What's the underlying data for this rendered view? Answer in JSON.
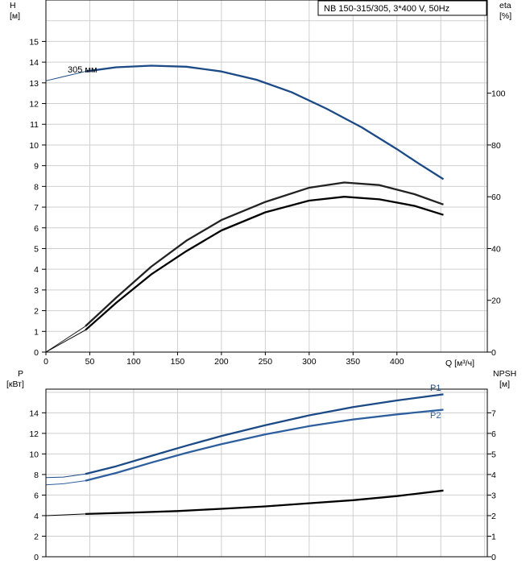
{
  "chart_data": [
    {
      "type": "line",
      "title": "NB 150-315/305, 3*400 V, 50Hz",
      "xlabel": "Q [м³/ч]",
      "ylabel_left": [
        "H",
        "[м]"
      ],
      "ylabel_right": [
        "eta",
        "[%]"
      ],
      "xlim": [
        0,
        460
      ],
      "ylim_left": [
        0,
        16
      ],
      "ylim_right": [
        0,
        128
      ],
      "x_ticks": [
        "0",
        "50",
        "100",
        "150",
        "200",
        "250",
        "300",
        "350",
        "400"
      ],
      "left_ticks": [
        "0",
        "1",
        "2",
        "3",
        "4",
        "5",
        "6",
        "7",
        "8",
        "9",
        "10",
        "11",
        "12",
        "13",
        "14",
        "15"
      ],
      "right_ticks": [
        "0",
        "20",
        "40",
        "60",
        "80",
        "100"
      ],
      "grid": true,
      "series": [
        {
          "name": "305 мм",
          "axis": "left",
          "color": "#1b4a86",
          "x": [
            0,
            20,
            45,
            80,
            120,
            160,
            200,
            240,
            280,
            320,
            360,
            400,
            425,
            453
          ],
          "y": [
            13.1,
            13.3,
            13.55,
            13.75,
            13.83,
            13.78,
            13.55,
            13.15,
            12.55,
            11.75,
            10.85,
            9.8,
            9.1,
            8.35
          ],
          "solid_from_x": 45
        },
        {
          "axis": "right",
          "color": "#222222",
          "x": [
            0,
            45,
            80,
            120,
            160,
            200,
            250,
            300,
            340,
            380,
            420,
            453
          ],
          "y": [
            0,
            10,
            21,
            33,
            43,
            51,
            58,
            63.5,
            65.5,
            64.5,
            61,
            57
          ],
          "solid_from_x": 45
        },
        {
          "axis": "right",
          "color": "#000000",
          "x": [
            0,
            45,
            80,
            120,
            160,
            200,
            250,
            300,
            340,
            380,
            420,
            453
          ],
          "y": [
            0,
            8.5,
            19,
            30,
            39,
            47,
            54,
            58.5,
            60,
            59,
            56.5,
            53
          ],
          "solid_from_x": 45
        }
      ]
    },
    {
      "type": "line",
      "xlabel": "",
      "ylabel_left": [
        "P",
        "[кВт]"
      ],
      "ylabel_right": [
        "NPSH",
        "[м]"
      ],
      "xlim": [
        0,
        460
      ],
      "ylim_left": [
        0,
        16
      ],
      "ylim_right": [
        0,
        8
      ],
      "left_ticks": [
        "0",
        "2",
        "4",
        "6",
        "8",
        "10",
        "12",
        "14"
      ],
      "right_ticks": [
        "0",
        "1",
        "2",
        "3",
        "4",
        "5",
        "6",
        "7"
      ],
      "grid": true,
      "series": [
        {
          "name": "P1",
          "axis": "left",
          "color": "#1b4a86",
          "x": [
            0,
            20,
            45,
            80,
            120,
            160,
            200,
            250,
            300,
            350,
            400,
            453
          ],
          "y": [
            7.7,
            7.75,
            8.05,
            8.8,
            9.8,
            10.8,
            11.75,
            12.8,
            13.75,
            14.55,
            15.2,
            15.8
          ],
          "solid_from_x": 45
        },
        {
          "name": "P2",
          "axis": "left",
          "color": "#2d5f9e",
          "x": [
            0,
            20,
            45,
            80,
            120,
            160,
            200,
            250,
            300,
            350,
            400,
            453
          ],
          "y": [
            7.0,
            7.1,
            7.4,
            8.15,
            9.15,
            10.1,
            10.95,
            11.9,
            12.7,
            13.35,
            13.85,
            14.3
          ],
          "solid_from_x": 45
        },
        {
          "axis": "right",
          "color": "#000000",
          "x": [
            0,
            45,
            100,
            150,
            200,
            250,
            300,
            350,
            400,
            453
          ],
          "y": [
            2.0,
            2.08,
            2.15,
            2.22,
            2.33,
            2.45,
            2.6,
            2.75,
            2.95,
            3.22
          ],
          "solid_from_x": 45
        }
      ]
    }
  ]
}
